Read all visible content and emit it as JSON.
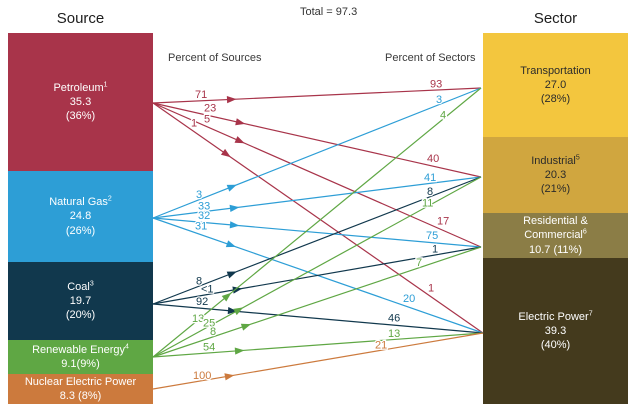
{
  "header": {
    "source_heading": "Source",
    "sector_heading": "Sector",
    "total_label": "Total = 97.3"
  },
  "column_labels": {
    "left": "Percent of Sources",
    "right": "Percent of Sectors"
  },
  "chart_data": {
    "type": "sankey",
    "total": 97.3,
    "title": "Total = 97.3",
    "left_axis_label": "Percent of Sources",
    "right_axis_label": "Percent of Sectors",
    "sources": [
      {
        "id": "petroleum",
        "name_lines": [
          "Petroleum"
        ],
        "sup": "1",
        "detail_lines": [
          "35.3",
          "(36%)"
        ],
        "value": 35.3,
        "percent_share": "36%",
        "color": "#a8344a",
        "text_color": "#ffffff"
      },
      {
        "id": "natural_gas",
        "name_lines": [
          "Natural Gas"
        ],
        "sup": "2",
        "detail_lines": [
          "24.8",
          "(26%)"
        ],
        "value": 24.8,
        "percent_share": "26%",
        "color": "#2d9ed6",
        "text_color": "#ffffff"
      },
      {
        "id": "coal",
        "name_lines": [
          "Coal"
        ],
        "sup": "3",
        "detail_lines": [
          "19.7",
          "(20%)"
        ],
        "value": 19.7,
        "percent_share": "20%",
        "color": "#11384d",
        "text_color": "#ffffff"
      },
      {
        "id": "renewable",
        "name_lines": [
          "Renewable Energy"
        ],
        "sup": "4",
        "detail_lines": [
          "9.1(9%)"
        ],
        "value": 9.1,
        "percent_share": "9%",
        "color": "#5fa744",
        "text_color": "#ffffff"
      },
      {
        "id": "nuclear",
        "name_lines": [
          "Nuclear Electric Power"
        ],
        "sup": "",
        "detail_lines": [
          "8.3 (8%)"
        ],
        "value": 8.3,
        "percent_share": "8%",
        "color": "#cc7a3d",
        "text_color": "#ffffff"
      }
    ],
    "sectors": [
      {
        "id": "transportation",
        "name_lines": [
          "Transportation"
        ],
        "sup": "",
        "detail_lines": [
          "27.0",
          "(28%)"
        ],
        "value": 27.0,
        "percent_share": "28%",
        "color": "#f3c63e",
        "text_color": "#2b2b2b"
      },
      {
        "id": "industrial",
        "name_lines": [
          "Industrial"
        ],
        "sup": "5",
        "detail_lines": [
          "20.3",
          "(21%)"
        ],
        "value": 20.3,
        "percent_share": "21%",
        "color": "#d0a63f",
        "text_color": "#2b2b2b"
      },
      {
        "id": "residential_commercial",
        "name_lines": [
          "Residential &",
          "Commercial"
        ],
        "sup": "6",
        "detail_lines": [
          "10.7 (11%)"
        ],
        "value": 10.7,
        "percent_share": "11%",
        "color": "#8b7d46",
        "text_color": "#ffffff"
      },
      {
        "id": "electric_power",
        "name_lines": [
          "Electric Power"
        ],
        "sup": "7",
        "detail_lines": [
          "39.3",
          "(40%)"
        ],
        "value": 39.3,
        "percent_share": "40%",
        "color": "#443a1d",
        "text_color": "#ffffff"
      }
    ],
    "flows": [
      {
        "source": "petroleum",
        "target": "transportation",
        "percent_of_source": "71",
        "percent_of_sector": "93"
      },
      {
        "source": "petroleum",
        "target": "industrial",
        "percent_of_source": "23",
        "percent_of_sector": "40"
      },
      {
        "source": "petroleum",
        "target": "residential_commercial",
        "percent_of_source": "5",
        "percent_of_sector": "17"
      },
      {
        "source": "petroleum",
        "target": "electric_power",
        "percent_of_source": "1",
        "percent_of_sector": "1"
      },
      {
        "source": "natural_gas",
        "target": "transportation",
        "percent_of_source": "3",
        "percent_of_sector": "3"
      },
      {
        "source": "natural_gas",
        "target": "industrial",
        "percent_of_source": "33",
        "percent_of_sector": "41"
      },
      {
        "source": "natural_gas",
        "target": "residential_commercial",
        "percent_of_source": "32",
        "percent_of_sector": "75"
      },
      {
        "source": "natural_gas",
        "target": "electric_power",
        "percent_of_source": "31",
        "percent_of_sector": "20"
      },
      {
        "source": "coal",
        "target": "industrial",
        "percent_of_source": "8",
        "percent_of_sector": "8"
      },
      {
        "source": "coal",
        "target": "residential_commercial",
        "percent_of_source": "<1",
        "percent_of_sector": "1"
      },
      {
        "source": "coal",
        "target": "electric_power",
        "percent_of_source": "92",
        "percent_of_sector": "46"
      },
      {
        "source": "renewable",
        "target": "transportation",
        "percent_of_source": "13",
        "percent_of_sector": "4"
      },
      {
        "source": "renewable",
        "target": "industrial",
        "percent_of_source": "25",
        "percent_of_sector": "11"
      },
      {
        "source": "renewable",
        "target": "residential_commercial",
        "percent_of_source": "8",
        "percent_of_sector": "7"
      },
      {
        "source": "renewable",
        "target": "electric_power",
        "percent_of_source": "54",
        "percent_of_sector": "13"
      },
      {
        "source": "nuclear",
        "target": "electric_power",
        "percent_of_source": "100",
        "percent_of_sector": "21"
      }
    ]
  }
}
